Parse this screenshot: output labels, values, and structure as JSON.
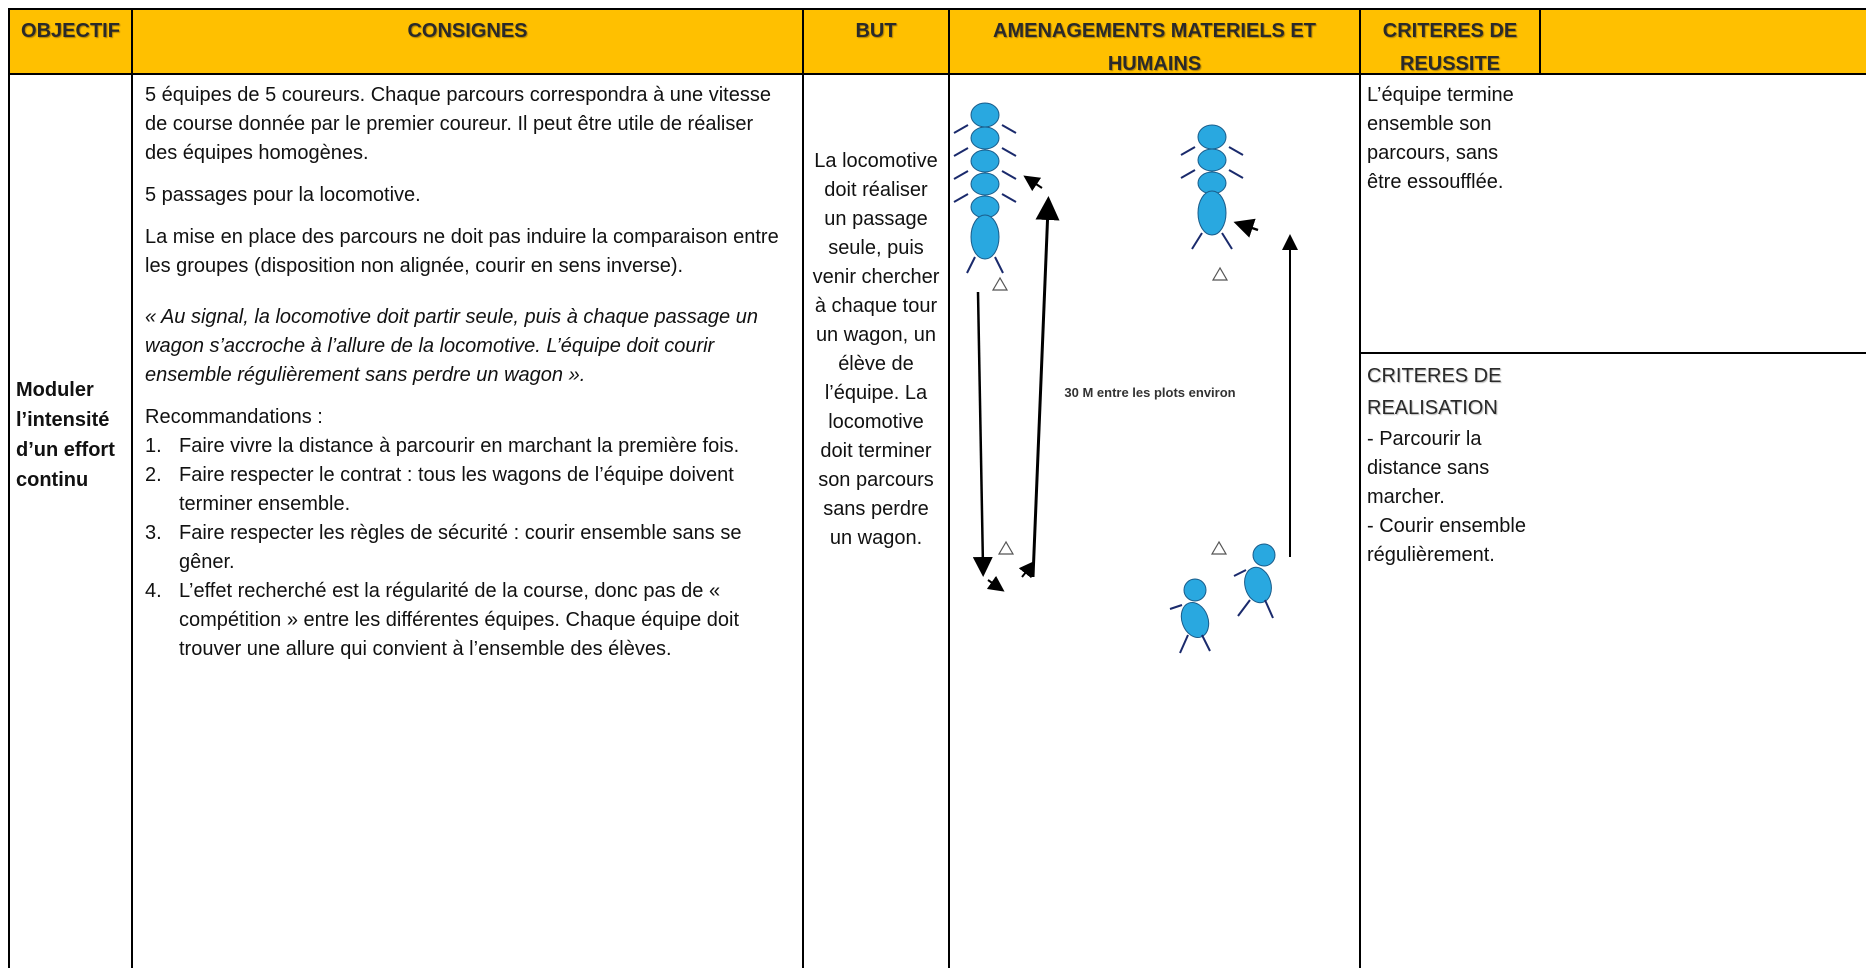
{
  "table": {
    "headers": [
      "OBJECTIF",
      "CONSIGNES",
      "BUT",
      "AMENAGEMENTS MATERIELS ET HUMAINS",
      "CRITERES DE REUSSITE"
    ],
    "row": {
      "objectif": "Moduler l’intensité d’un effort continu",
      "consignes": {
        "paragraphs": [
          "5 équipes de 5 coureurs. Chaque parcours correspondra à une vitesse de course donnée par le premier coureur. Il peut être utile de réaliser des équipes homogènes.",
          "5 passages pour la locomotive.",
          "La mise en place des parcours ne doit pas induire la comparaison entre les groupes (disposition non alignée, courir en sens inverse)."
        ],
        "quote": "« Au signal, la locomotive doit partir seule, puis à chaque passage un wagon s’accroche à l’allure de la locomotive. L’équipe doit courir ensemble régulièrement sans perdre un wagon ».",
        "recommendations_title": "Recommandations :",
        "recommendations": [
          {
            "number": "1.",
            "text": "Faire vivre la distance à parcourir en marchant la première fois."
          },
          {
            "number": "2.",
            "text": "Faire respecter le contrat : tous les wagons de l’équipe doivent terminer ensemble."
          },
          {
            "number": "3.",
            "text": "Faire respecter les règles de sécurité : courir ensemble sans se gêner."
          },
          {
            "number": "4.",
            "text": "L’effet recherché est la régularité de la course, donc pas de « compétition » entre les différentes équipes. Chaque équipe doit trouver une allure qui convient à l’ensemble des élèves."
          }
        ]
      },
      "but": "La locomotive doit réaliser un passage seule, puis venir chercher à chaque tour un wagon, un élève de l’équipe. La locomotive doit terminer son parcours sans perdre un wagon.",
      "amenagements": {
        "label": "30 M entre les plots environ"
      },
      "criteres_reussite": "L’équipe termine ensemble son parcours, sans être essoufflée.",
      "criteres_realisation": {
        "title": "CRITERES DE REALISATION",
        "items": [
          "- Parcourir la distance sans marcher.",
          "- Courir ensemble régulièrement."
        ]
      }
    }
  }
}
